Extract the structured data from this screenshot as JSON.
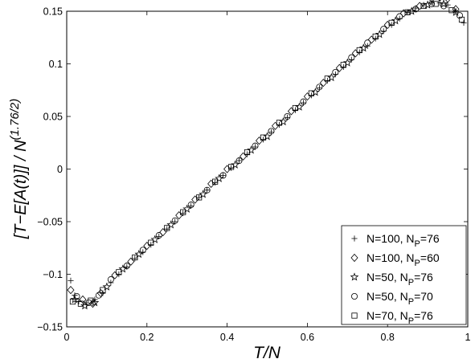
{
  "chart_data": {
    "type": "scatter",
    "title": "",
    "xlabel": "T/N",
    "ylabel_main": "[T−E[A(t)]] / N",
    "ylabel_exponent": "(1.76/2)",
    "xlim": [
      0,
      1
    ],
    "ylim": [
      -0.15,
      0.15
    ],
    "xticks": [
      0,
      0.2,
      0.4,
      0.6,
      0.8,
      1
    ],
    "xtick_labels": [
      "0",
      "0.2",
      "0.4",
      "0.6",
      "0.8",
      "1"
    ],
    "yticks": [
      -0.15,
      -0.1,
      -0.05,
      0,
      0.05,
      0.1,
      0.15
    ],
    "ytick_labels": [
      "−0.15",
      "−0.1",
      "−0.05",
      "0",
      "0.05",
      "0.1",
      "0.15"
    ],
    "grid": false,
    "legend_position": "bottom-right",
    "series": [
      {
        "name": "N=100, NP=76",
        "label_main": "N=100, N",
        "label_sub": "P",
        "label_tail": "=76",
        "marker": "plus",
        "points": [
          [
            0.01,
            -0.106
          ],
          [
            0.02,
            -0.12
          ],
          [
            0.03,
            -0.126
          ],
          [
            0.05,
            -0.129
          ],
          [
            0.07,
            -0.124
          ],
          [
            0.09,
            -0.118
          ],
          [
            0.11,
            -0.108
          ],
          [
            0.13,
            -0.1
          ],
          [
            0.15,
            -0.093
          ],
          [
            0.17,
            -0.085
          ],
          [
            0.19,
            -0.079
          ],
          [
            0.21,
            -0.072
          ],
          [
            0.23,
            -0.064
          ],
          [
            0.25,
            -0.057
          ],
          [
            0.27,
            -0.05
          ],
          [
            0.29,
            -0.042
          ],
          [
            0.31,
            -0.035
          ],
          [
            0.33,
            -0.027
          ],
          [
            0.35,
            -0.02
          ],
          [
            0.37,
            -0.013
          ],
          [
            0.39,
            -0.006
          ],
          [
            0.41,
            0.001
          ],
          [
            0.43,
            0.008
          ],
          [
            0.45,
            0.014
          ],
          [
            0.47,
            0.021
          ],
          [
            0.49,
            0.028
          ],
          [
            0.51,
            0.035
          ],
          [
            0.53,
            0.042
          ],
          [
            0.55,
            0.049
          ],
          [
            0.57,
            0.056
          ],
          [
            0.59,
            0.063
          ],
          [
            0.61,
            0.07
          ],
          [
            0.63,
            0.077
          ],
          [
            0.65,
            0.084
          ],
          [
            0.67,
            0.09
          ],
          [
            0.69,
            0.097
          ],
          [
            0.71,
            0.104
          ],
          [
            0.73,
            0.111
          ],
          [
            0.75,
            0.117
          ],
          [
            0.77,
            0.124
          ],
          [
            0.79,
            0.131
          ],
          [
            0.81,
            0.137
          ],
          [
            0.83,
            0.143
          ],
          [
            0.85,
            0.149
          ],
          [
            0.87,
            0.153
          ],
          [
            0.89,
            0.156
          ],
          [
            0.91,
            0.158
          ],
          [
            0.93,
            0.158
          ],
          [
            0.95,
            0.156
          ],
          [
            0.97,
            0.15
          ],
          [
            0.99,
            0.139
          ]
        ]
      },
      {
        "name": "N=100, NP=60",
        "label_main": "N=100, N",
        "label_sub": "P",
        "label_tail": "=60",
        "marker": "diamond",
        "points": [
          [
            0.01,
            -0.115
          ],
          [
            0.04,
            -0.124
          ],
          [
            0.065,
            -0.128
          ],
          [
            0.085,
            -0.118
          ],
          [
            0.12,
            -0.101
          ],
          [
            0.16,
            -0.088
          ],
          [
            0.2,
            -0.073
          ],
          [
            0.24,
            -0.06
          ],
          [
            0.28,
            -0.044
          ],
          [
            0.32,
            -0.029
          ],
          [
            0.36,
            -0.014
          ],
          [
            0.4,
            -0.0
          ],
          [
            0.44,
            0.012
          ],
          [
            0.48,
            0.027
          ],
          [
            0.52,
            0.041
          ],
          [
            0.56,
            0.055
          ],
          [
            0.6,
            0.069
          ],
          [
            0.64,
            0.082
          ],
          [
            0.68,
            0.096
          ],
          [
            0.72,
            0.11
          ],
          [
            0.76,
            0.123
          ],
          [
            0.8,
            0.137
          ],
          [
            0.84,
            0.148
          ],
          [
            0.88,
            0.155
          ],
          [
            0.91,
            0.162
          ],
          [
            0.93,
            0.163
          ],
          [
            0.95,
            0.162
          ],
          [
            0.97,
            0.152
          ]
        ]
      },
      {
        "name": "N=50, NP=76",
        "label_main": "N=50, N",
        "label_sub": "P",
        "label_tail": "=76",
        "marker": "star",
        "points": [
          [
            0.02,
            -0.124
          ],
          [
            0.045,
            -0.13
          ],
          [
            0.07,
            -0.127
          ],
          [
            0.1,
            -0.112
          ],
          [
            0.14,
            -0.095
          ],
          [
            0.18,
            -0.081
          ],
          [
            0.22,
            -0.067
          ],
          [
            0.26,
            -0.053
          ],
          [
            0.3,
            -0.038
          ],
          [
            0.34,
            -0.024
          ],
          [
            0.38,
            -0.009
          ],
          [
            0.42,
            0.004
          ],
          [
            0.46,
            0.018
          ],
          [
            0.5,
            0.031
          ],
          [
            0.54,
            0.045
          ],
          [
            0.58,
            0.059
          ],
          [
            0.62,
            0.073
          ],
          [
            0.66,
            0.087
          ],
          [
            0.7,
            0.101
          ],
          [
            0.74,
            0.115
          ],
          [
            0.78,
            0.128
          ],
          [
            0.82,
            0.141
          ],
          [
            0.86,
            0.15
          ],
          [
            0.9,
            0.156
          ],
          [
            0.94,
            0.157
          ],
          [
            0.97,
            0.149
          ]
        ]
      },
      {
        "name": "N=50, NP=70",
        "label_main": "N=50, N",
        "label_sub": "P",
        "label_tail": "=70",
        "marker": "circle",
        "points": [
          [
            0.025,
            -0.121
          ],
          [
            0.055,
            -0.127
          ],
          [
            0.08,
            -0.12
          ],
          [
            0.11,
            -0.105
          ],
          [
            0.15,
            -0.092
          ],
          [
            0.19,
            -0.077
          ],
          [
            0.23,
            -0.063
          ],
          [
            0.27,
            -0.049
          ],
          [
            0.31,
            -0.034
          ],
          [
            0.35,
            -0.02
          ],
          [
            0.39,
            -0.006
          ],
          [
            0.43,
            0.008
          ],
          [
            0.47,
            0.022
          ],
          [
            0.51,
            0.036
          ],
          [
            0.55,
            0.05
          ],
          [
            0.59,
            0.064
          ],
          [
            0.63,
            0.078
          ],
          [
            0.67,
            0.092
          ],
          [
            0.71,
            0.106
          ],
          [
            0.75,
            0.12
          ],
          [
            0.79,
            0.133
          ],
          [
            0.83,
            0.145
          ],
          [
            0.87,
            0.152
          ],
          [
            0.91,
            0.157
          ],
          [
            0.94,
            0.155
          ],
          [
            0.98,
            0.146
          ]
        ]
      },
      {
        "name": "N=70, NP=76",
        "label_main": "N=70, N",
        "label_sub": "P",
        "label_tail": "=76",
        "marker": "square",
        "points": [
          [
            0.015,
            -0.126
          ],
          [
            0.035,
            -0.128
          ],
          [
            0.06,
            -0.125
          ],
          [
            0.09,
            -0.115
          ],
          [
            0.13,
            -0.098
          ],
          [
            0.17,
            -0.084
          ],
          [
            0.21,
            -0.07
          ],
          [
            0.25,
            -0.056
          ],
          [
            0.29,
            -0.041
          ],
          [
            0.33,
            -0.027
          ],
          [
            0.37,
            -0.012
          ],
          [
            0.41,
            0.002
          ],
          [
            0.45,
            0.016
          ],
          [
            0.49,
            0.03
          ],
          [
            0.53,
            0.044
          ],
          [
            0.57,
            0.058
          ],
          [
            0.61,
            0.072
          ],
          [
            0.65,
            0.086
          ],
          [
            0.69,
            0.099
          ],
          [
            0.73,
            0.113
          ],
          [
            0.77,
            0.126
          ],
          [
            0.81,
            0.139
          ],
          [
            0.85,
            0.149
          ],
          [
            0.89,
            0.155
          ],
          [
            0.92,
            0.157
          ],
          [
            0.96,
            0.151
          ],
          [
            0.985,
            0.142
          ]
        ]
      }
    ]
  }
}
